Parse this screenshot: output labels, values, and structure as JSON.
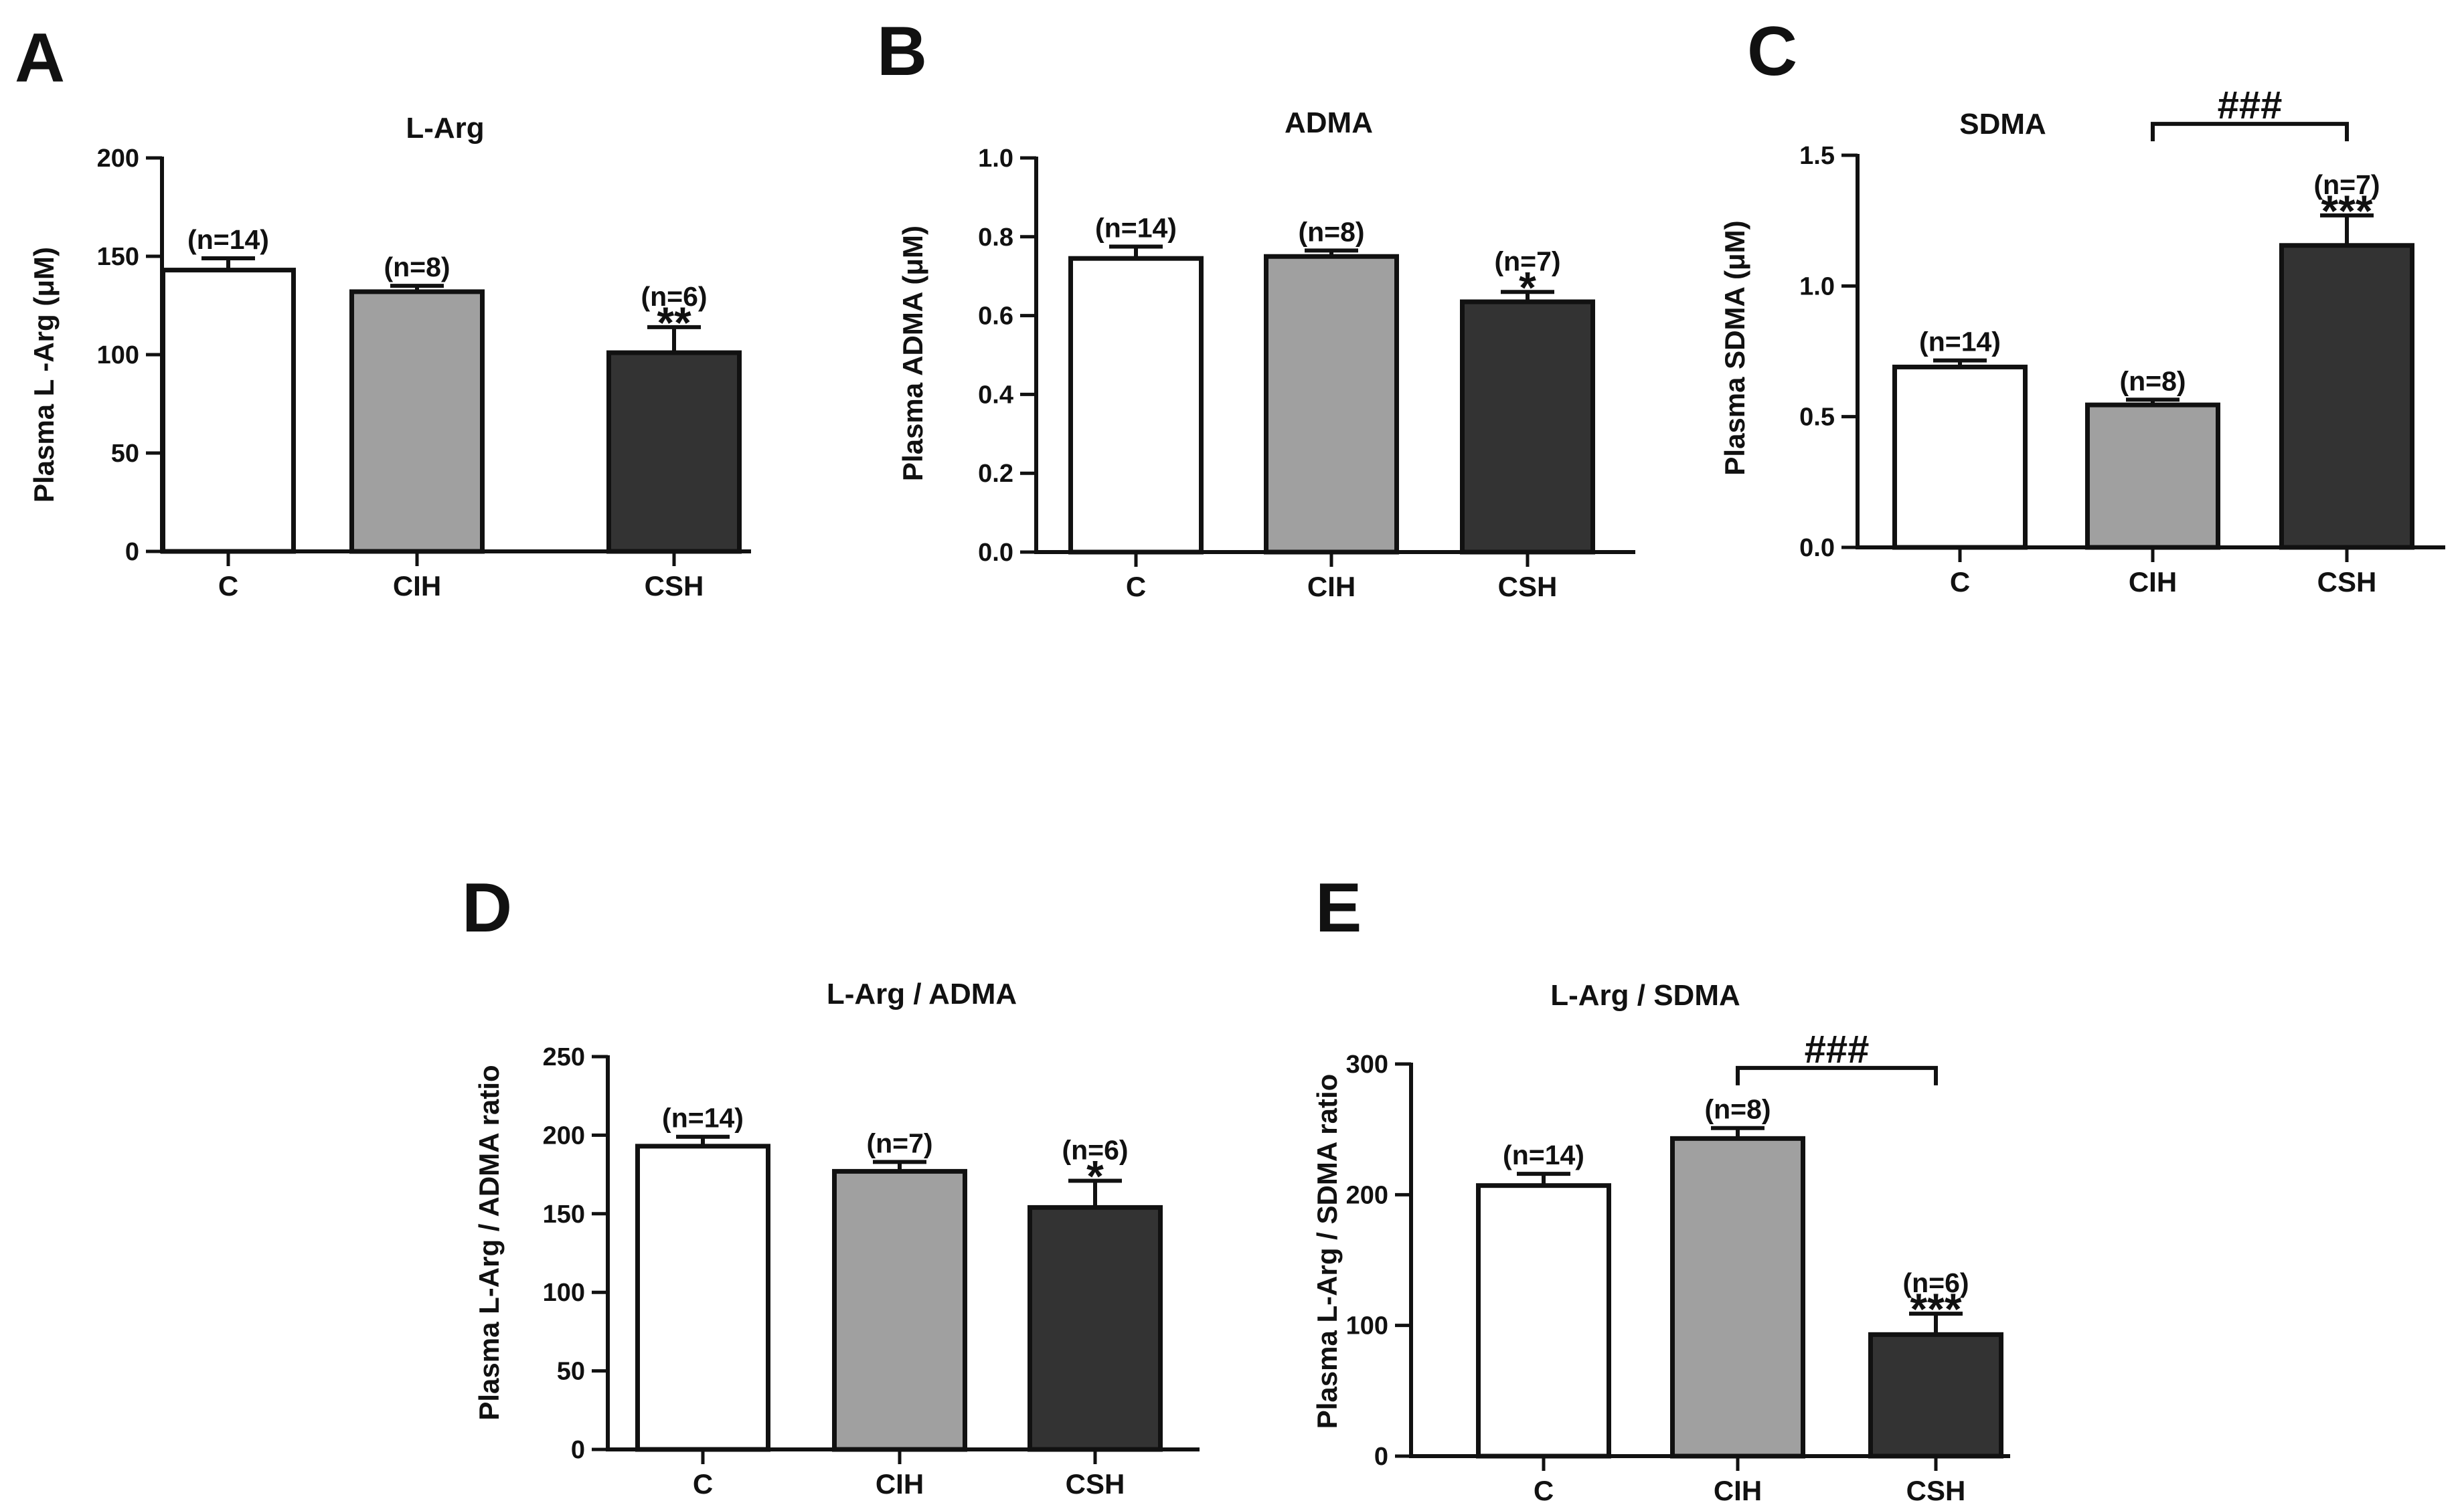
{
  "colors": {
    "C": "#ffffff",
    "CIH": "#a0a0a0",
    "CSH": "#333333",
    "stroke": "#111111"
  },
  "chart_data": [
    {
      "panel": "A",
      "type": "bar",
      "title": "L-Arg",
      "ylabel": "Plasma L -Arg (μM)",
      "categories": [
        "C",
        "CIH",
        "CSH"
      ],
      "values": [
        143,
        132,
        101
      ],
      "errors": [
        6,
        3,
        13
      ],
      "n_labels": [
        "(n=14)",
        "(n=8)",
        "(n=6)"
      ],
      "sig": [
        "",
        "",
        "**"
      ],
      "ylim": [
        0,
        200
      ],
      "yticks": [
        0,
        50,
        100,
        150,
        200
      ],
      "ytick_labels": [
        "0",
        "50",
        "100",
        "150",
        "200"
      ]
    },
    {
      "panel": "B",
      "type": "bar",
      "title": "ADMA",
      "ylabel": "Plasma ADMA (μM)",
      "categories": [
        "C",
        "CIH",
        "CSH"
      ],
      "values": [
        0.745,
        0.75,
        0.635
      ],
      "errors": [
        0.03,
        0.015,
        0.025
      ],
      "n_labels": [
        "(n=14)",
        "(n=8)",
        "(n=7)"
      ],
      "sig": [
        "",
        "",
        "*"
      ],
      "ylim": [
        0,
        1.0
      ],
      "yticks": [
        0,
        0.2,
        0.4,
        0.6,
        0.8,
        1.0
      ],
      "ytick_labels": [
        "0.0",
        "0.2",
        "0.4",
        "0.6",
        "0.8",
        "1.0"
      ]
    },
    {
      "panel": "C",
      "type": "bar",
      "title": "SDMA",
      "ylabel": "Plasma SDMA (μM)",
      "categories": [
        "C",
        "CIH",
        "CSH"
      ],
      "values": [
        0.69,
        0.545,
        1.155
      ],
      "errors": [
        0.025,
        0.02,
        0.115
      ],
      "n_labels": [
        "(n=14)",
        "(n=8)",
        "(n=7)"
      ],
      "sig": [
        "",
        "",
        "***"
      ],
      "bracket": {
        "from": 1,
        "to": 2,
        "label": "###",
        "y": 1.62
      },
      "ylim": [
        0,
        1.5
      ],
      "yticks": [
        0,
        0.5,
        1.0,
        1.5
      ],
      "ytick_labels": [
        "0.0",
        "0.5",
        "1.0",
        "1.5"
      ]
    },
    {
      "panel": "D",
      "type": "bar",
      "title": "L-Arg / ADMA",
      "ylabel": "Plasma L-Arg / ADMA ratio",
      "categories": [
        "C",
        "CIH",
        "CSH"
      ],
      "values": [
        193,
        177,
        154
      ],
      "errors": [
        6,
        6,
        17
      ],
      "n_labels": [
        "(n=14)",
        "(n=7)",
        "(n=6)"
      ],
      "sig": [
        "",
        "",
        "*"
      ],
      "ylim": [
        0,
        250
      ],
      "yticks": [
        0,
        50,
        100,
        150,
        200,
        250
      ],
      "ytick_labels": [
        "0",
        "50",
        "100",
        "150",
        "200",
        "250"
      ]
    },
    {
      "panel": "E",
      "type": "bar",
      "title": "L-Arg / SDMA",
      "ylabel": "Plasma L-Arg / SDMA ratio",
      "categories": [
        "C",
        "CIH",
        "CSH"
      ],
      "values": [
        207,
        243,
        93
      ],
      "errors": [
        9,
        8,
        16
      ],
      "n_labels": [
        "(n=14)",
        "(n=8)",
        "(n=6)"
      ],
      "sig": [
        "",
        "",
        "***"
      ],
      "bracket": {
        "from": 1,
        "to": 2,
        "label": "###",
        "y": 297
      },
      "ylim": [
        0,
        300
      ],
      "yticks": [
        0,
        100,
        200,
        300
      ],
      "ytick_labels": [
        "0",
        "100",
        "200",
        "300"
      ]
    }
  ]
}
